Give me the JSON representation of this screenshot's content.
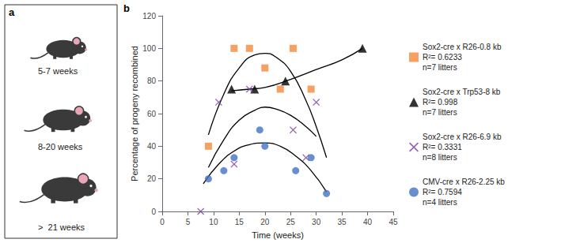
{
  "panel_a": {
    "label": "a",
    "ages": [
      "5-7 weeks",
      "8-20 weeks",
      ">  21 weeks"
    ]
  },
  "chart_data": {
    "type": "scatter",
    "panel_label": "b",
    "xlabel": "Time (weeks)",
    "ylabel": "Percentage of progeny recombined",
    "xlim": [
      0,
      45
    ],
    "xticks": [
      0,
      5,
      10,
      15,
      20,
      25,
      30,
      35,
      40,
      45
    ],
    "ylim": [
      0,
      120
    ],
    "yticks": [
      0,
      20,
      40,
      60,
      80,
      100,
      120
    ],
    "grid": false,
    "legend": "right",
    "series": [
      {
        "name": "Sox2-cre x R26-0.8 kb",
        "color": "#f5883a",
        "marker": "square",
        "notes": [
          "R²= 0.6233",
          "n=7 litters"
        ],
        "x": [
          9,
          14,
          17,
          20,
          23,
          25.5,
          29
        ],
        "values": [
          40,
          100,
          100,
          88,
          75,
          100,
          75
        ],
        "trend": {
          "x": [
            9,
            12,
            15,
            18,
            20,
            22,
            25,
            28,
            30,
            32
          ],
          "values": [
            47,
            72,
            88,
            96,
            97,
            95,
            86,
            68,
            52,
            33
          ]
        }
      },
      {
        "name": "Sox2-cre x Trp53-8 kb",
        "color": "#000000",
        "marker": "triangle",
        "notes": [
          "R²= 0.998",
          "n=7 litters"
        ],
        "x": [
          13.5,
          18,
          24,
          39
        ],
        "values": [
          75,
          75,
          80,
          100
        ],
        "trend": {
          "x": [
            13.5,
            17,
            20,
            25,
            30,
            35,
            39
          ],
          "values": [
            74,
            75,
            76,
            81,
            87,
            93,
            100
          ]
        }
      },
      {
        "name": "Sox2-cre x R26-6.9 kb",
        "color": "#7a3e9d",
        "marker": "x",
        "notes": [
          "R²= 0.3331",
          "n=8 litters"
        ],
        "x": [
          7.5,
          11,
          14,
          17,
          25.5,
          28,
          30
        ],
        "values": [
          0,
          67,
          29,
          75,
          50,
          33,
          67
        ],
        "trend": {
          "x": [
            9,
            12,
            15,
            18,
            20,
            22,
            25,
            28,
            30
          ],
          "values": [
            27,
            44,
            56,
            62,
            64,
            63,
            59,
            52,
            46
          ]
        }
      },
      {
        "name": "CMV-cre x R26-2.25 kb",
        "color": "#4472c4",
        "marker": "circle",
        "notes": [
          "R²= 0.7594",
          "n=4 litters"
        ],
        "x": [
          9,
          12,
          14,
          19,
          20,
          26,
          29,
          32
        ],
        "values": [
          20,
          25,
          33,
          50,
          40,
          25,
          33,
          11
        ],
        "trend": {
          "x": [
            8,
            11,
            14,
            17,
            20,
            23,
            26,
            29,
            32
          ],
          "values": [
            17,
            29,
            37,
            41,
            42,
            40,
            34,
            25,
            12
          ]
        }
      }
    ]
  }
}
